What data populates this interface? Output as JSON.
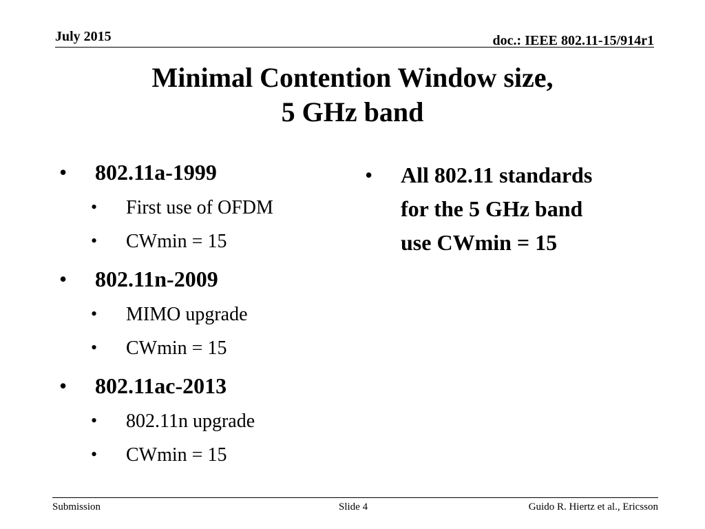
{
  "header": {
    "date": "July 2015",
    "doc": "doc.: IEEE 802.11-15/914r1"
  },
  "title": [
    "Minimal Contention Window size,",
    "5 GHz band"
  ],
  "left": [
    {
      "heading": "802.11a-1999",
      "items": [
        "First use of OFDM",
        "CWmin = 15"
      ]
    },
    {
      "heading": "802.11n-2009",
      "items": [
        "MIMO upgrade",
        "CWmin = 15"
      ]
    },
    {
      "heading": "802.11ac-2013",
      "items": [
        "802.11n upgrade",
        "CWmin = 15"
      ]
    }
  ],
  "right": [
    "All 802.11 standards",
    "for the 5 GHz band",
    "use CWmin = 15"
  ],
  "footer": {
    "left": "Submission",
    "center": "Slide 4",
    "right": "Guido R. Hiertz et al., Ericsson"
  }
}
